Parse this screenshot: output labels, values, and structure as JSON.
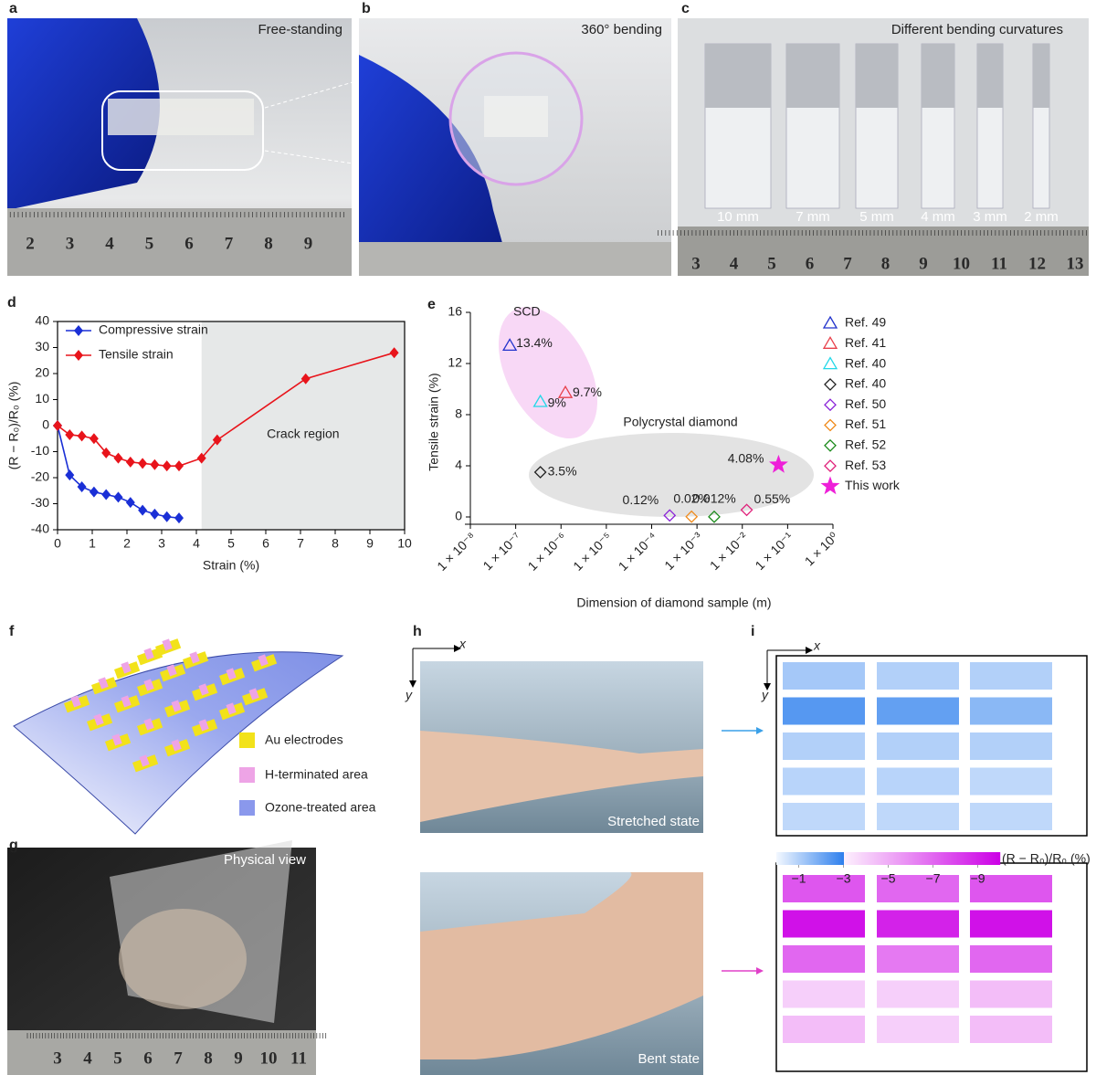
{
  "panels": {
    "a": {
      "label": "a",
      "caption": "Free-standing",
      "ruler": [
        2,
        3,
        4,
        5,
        6,
        7,
        8,
        9
      ]
    },
    "b": {
      "label": "b",
      "caption": "360° bending"
    },
    "c": {
      "label": "c",
      "caption": "Different bending curvatures",
      "rods": [
        "10 mm",
        "7 mm",
        "5 mm",
        "4 mm",
        "3 mm",
        "2 mm"
      ],
      "ruler": [
        3,
        4,
        5,
        6,
        7,
        8,
        9,
        10,
        11,
        12,
        13
      ]
    },
    "f": {
      "label": "f",
      "legend": [
        "Au electrodes",
        "H-terminated area",
        "Ozone-treated area"
      ]
    },
    "g": {
      "label": "g",
      "caption": "Physical view",
      "ruler": [
        3,
        4,
        5,
        6,
        7,
        8,
        9,
        10,
        11
      ]
    },
    "h": {
      "label": "h",
      "axis_x": "x",
      "axis_y": "y",
      "captions": [
        "Stretched state",
        "Bent state"
      ]
    },
    "i": {
      "label": "i",
      "axis_x": "x",
      "axis_y": "y"
    }
  },
  "chart_data": [
    {
      "type": "line",
      "panel_label": "d",
      "xlabel": "Strain (%)",
      "ylabel": "(R − R₀)/R₀ (%)",
      "xlim": [
        0,
        10
      ],
      "ylim": [
        -40,
        40
      ],
      "xticks": [
        0,
        1,
        2,
        3,
        4,
        5,
        6,
        7,
        8,
        9,
        10
      ],
      "yticks": [
        -40,
        -30,
        -20,
        -10,
        0,
        10,
        20,
        30,
        40
      ],
      "shaded_region": {
        "x": [
          4.15,
          10
        ],
        "label": "Crack region",
        "color": "#e6e8e8"
      },
      "series": [
        {
          "name": "Compressive strain",
          "color": "#1a2fd6",
          "x": [
            0,
            0.35,
            0.7,
            1.05,
            1.4,
            1.75,
            2.1,
            2.45,
            2.8,
            3.15,
            3.5
          ],
          "values": [
            0,
            -19,
            -23.5,
            -25.5,
            -26.5,
            -27.5,
            -29.5,
            -32.5,
            -34,
            -35,
            -35.5
          ]
        },
        {
          "name": "Tensile strain",
          "color": "#e8141b",
          "x": [
            0,
            0.35,
            0.7,
            1.05,
            1.4,
            1.75,
            2.1,
            2.45,
            2.8,
            3.15,
            3.5,
            4.15,
            4.6,
            7.15,
            9.7
          ],
          "values": [
            0,
            -3.5,
            -4,
            -5,
            -10.5,
            -12.5,
            -14,
            -14.5,
            -15,
            -15.5,
            -15.5,
            -12.5,
            -5.5,
            18,
            28
          ]
        }
      ]
    },
    {
      "type": "scatter",
      "panel_label": "e",
      "xlabel": "Dimension of diamond sample (m)",
      "ylabel": "Tensile strain (%)",
      "log_x": true,
      "xlim": [
        1e-08,
        1
      ],
      "ylim": [
        0,
        16
      ],
      "xticks": [
        {
          "value": 1e-08,
          "label": "1 × 10⁻⁸"
        },
        {
          "value": 1e-07,
          "label": "1 × 10⁻⁷"
        },
        {
          "value": 1e-06,
          "label": "1 × 10⁻⁶"
        },
        {
          "value": 1e-05,
          "label": "1 × 10⁻⁵"
        },
        {
          "value": 0.0001,
          "label": "1 × 10⁻⁴"
        },
        {
          "value": 0.001,
          "label": "1 × 10⁻³"
        },
        {
          "value": 0.01,
          "label": "1 × 10⁻²"
        },
        {
          "value": 0.1,
          "label": "1 × 10⁻¹"
        },
        {
          "value": 1,
          "label": "1 × 10⁰"
        }
      ],
      "yticks": [
        0,
        4,
        8,
        12,
        16
      ],
      "annotations": [
        "SCD",
        "Polycrystal diamond"
      ],
      "series": [
        {
          "name": "Ref. 49",
          "color": "#2233cc",
          "marker": "triangle",
          "x": [
            7.4e-08
          ],
          "values": [
            13.4
          ],
          "value_labels": [
            "13.4%"
          ]
        },
        {
          "name": "Ref. 41",
          "color": "#e8404a",
          "marker": "triangle",
          "x": [
            1.25e-06
          ],
          "values": [
            9.7
          ],
          "value_labels": [
            "9.7%"
          ]
        },
        {
          "name": "Ref. 40",
          "color": "#22d8e8",
          "marker": "triangle",
          "x": [
            3.5e-07
          ],
          "values": [
            9
          ],
          "value_labels": [
            "9%"
          ]
        },
        {
          "name": "Ref. 40",
          "color": "#222222",
          "marker": "diamond",
          "x": [
            3.5e-07
          ],
          "values": [
            3.5
          ],
          "value_labels": [
            "3.5%"
          ]
        },
        {
          "name": "Ref. 50",
          "color": "#8a22d8",
          "marker": "diamond",
          "x": [
            0.00025
          ],
          "values": [
            0.12
          ],
          "value_labels": [
            "0.12%"
          ]
        },
        {
          "name": "Ref. 51",
          "color": "#f08a1a",
          "marker": "diamond",
          "x": [
            0.00076
          ],
          "values": [
            0.02
          ],
          "value_labels": [
            "0.02%"
          ]
        },
        {
          "name": "Ref. 52",
          "color": "#1a8a1a",
          "marker": "diamond",
          "x": [
            0.0024
          ],
          "values": [
            0.012
          ],
          "value_labels": [
            "0.012%"
          ]
        },
        {
          "name": "Ref. 53",
          "color": "#e0207a",
          "marker": "diamond",
          "x": [
            0.0125
          ],
          "values": [
            0.55
          ],
          "value_labels": [
            "0.55%"
          ]
        },
        {
          "name": "This work",
          "color": "#ee20d8",
          "marker": "star",
          "x": [
            0.063
          ],
          "values": [
            4.08
          ],
          "value_labels": [
            "4.08%"
          ]
        }
      ]
    },
    {
      "type": "heatmap",
      "colorbar_label": "(R − R₀)/R₀ (%)",
      "vlim": [
        0,
        -10
      ],
      "colorbar_ticks": [
        {
          "value": -1,
          "label": "−1"
        },
        {
          "value": -3,
          "label": "−3"
        },
        {
          "value": -5,
          "label": "−5"
        },
        {
          "value": -7,
          "label": "−7"
        },
        {
          "value": -9,
          "label": "−9"
        }
      ],
      "colormap": [
        {
          "value": 0,
          "color": "#f3f8ff"
        },
        {
          "value": -3,
          "color": "#2f80ed"
        },
        {
          "value": -3,
          "color": "#fdf1fd"
        },
        {
          "value": -10,
          "color": "#cc00e6"
        }
      ],
      "values": [
        [
          [
            -1.2,
            -1.0,
            -1.0
          ],
          [
            -2.4,
            -2.2,
            -1.6
          ],
          [
            -1.0,
            -1.0,
            -1.0
          ],
          [
            -0.9,
            -0.9,
            -0.8
          ],
          [
            -0.8,
            -0.8,
            -0.8
          ]
        ],
        [
          [
            -7.5,
            -7,
            -7.5
          ],
          [
            -9.5,
            -9,
            -9.5
          ],
          [
            -7,
            -6.5,
            -7
          ],
          [
            -4,
            -4,
            -4.5
          ],
          [
            -4.5,
            -4,
            -4.5
          ]
        ]
      ]
    }
  ]
}
